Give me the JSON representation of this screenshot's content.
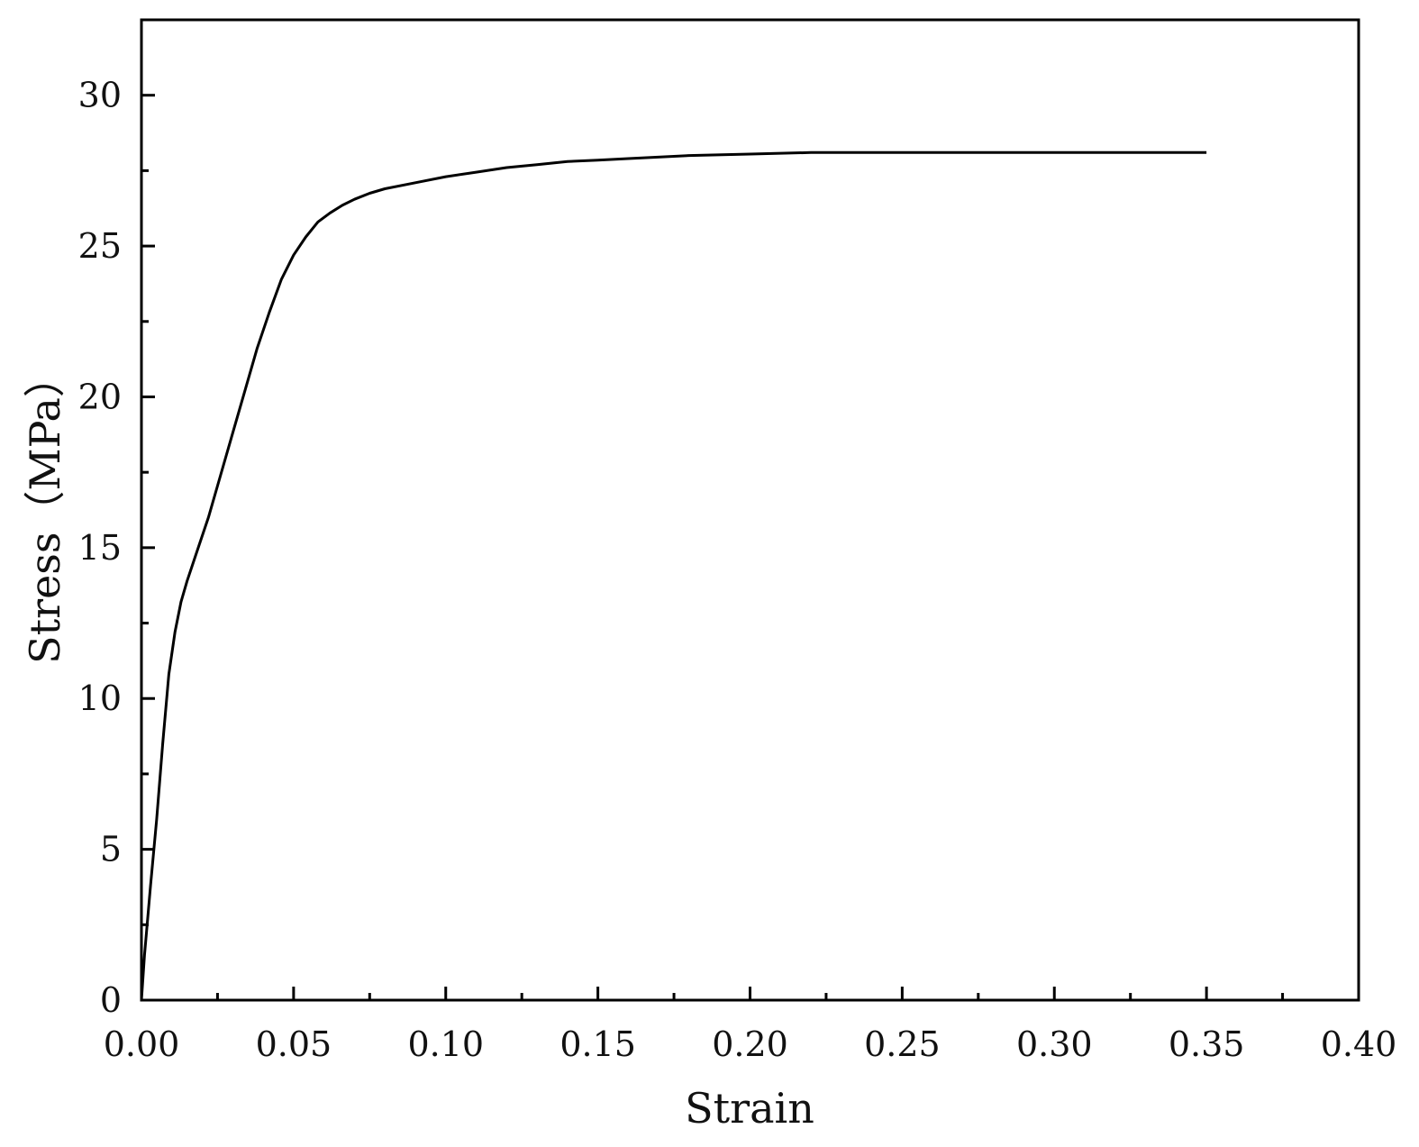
{
  "chart_data": {
    "type": "line",
    "title": "",
    "xlabel": "Strain",
    "ylabel": "Stress（MPa）",
    "xlim": [
      0.0,
      0.4
    ],
    "ylim": [
      0,
      32.5
    ],
    "grid": false,
    "legend": "none",
    "x_ticks": [
      0.0,
      0.05,
      0.1,
      0.15,
      0.2,
      0.25,
      0.3,
      0.35,
      0.4
    ],
    "x_tick_labels": [
      "0.00",
      "0.05",
      "0.10",
      "0.15",
      "0.20",
      "0.25",
      "0.30",
      "0.35",
      "0.40"
    ],
    "y_ticks": [
      0,
      5,
      10,
      15,
      20,
      25,
      30
    ],
    "y_tick_labels": [
      "0",
      "5",
      "10",
      "15",
      "20",
      "25",
      "30"
    ],
    "line_color": "#000000",
    "series": [
      {
        "x": [
          0.0,
          0.001,
          0.003,
          0.005,
          0.007,
          0.009,
          0.011,
          0.013,
          0.015,
          0.018,
          0.022,
          0.026,
          0.03,
          0.034,
          0.038,
          0.042,
          0.046,
          0.05,
          0.054,
          0.058,
          0.062,
          0.066,
          0.07,
          0.075,
          0.08,
          0.09,
          0.1,
          0.11,
          0.12,
          0.13,
          0.14,
          0.15,
          0.16,
          0.18,
          0.2,
          0.22,
          0.25,
          0.3,
          0.35
        ],
        "y": [
          0.0,
          1.5,
          3.8,
          6.0,
          8.5,
          10.8,
          12.2,
          13.2,
          13.9,
          14.8,
          16.0,
          17.4,
          18.8,
          20.2,
          21.6,
          22.8,
          23.9,
          24.7,
          25.3,
          25.8,
          26.1,
          26.35,
          26.55,
          26.75,
          26.9,
          27.1,
          27.3,
          27.45,
          27.6,
          27.7,
          27.8,
          27.85,
          27.9,
          28.0,
          28.05,
          28.1,
          28.1,
          28.1,
          28.1
        ]
      }
    ]
  }
}
